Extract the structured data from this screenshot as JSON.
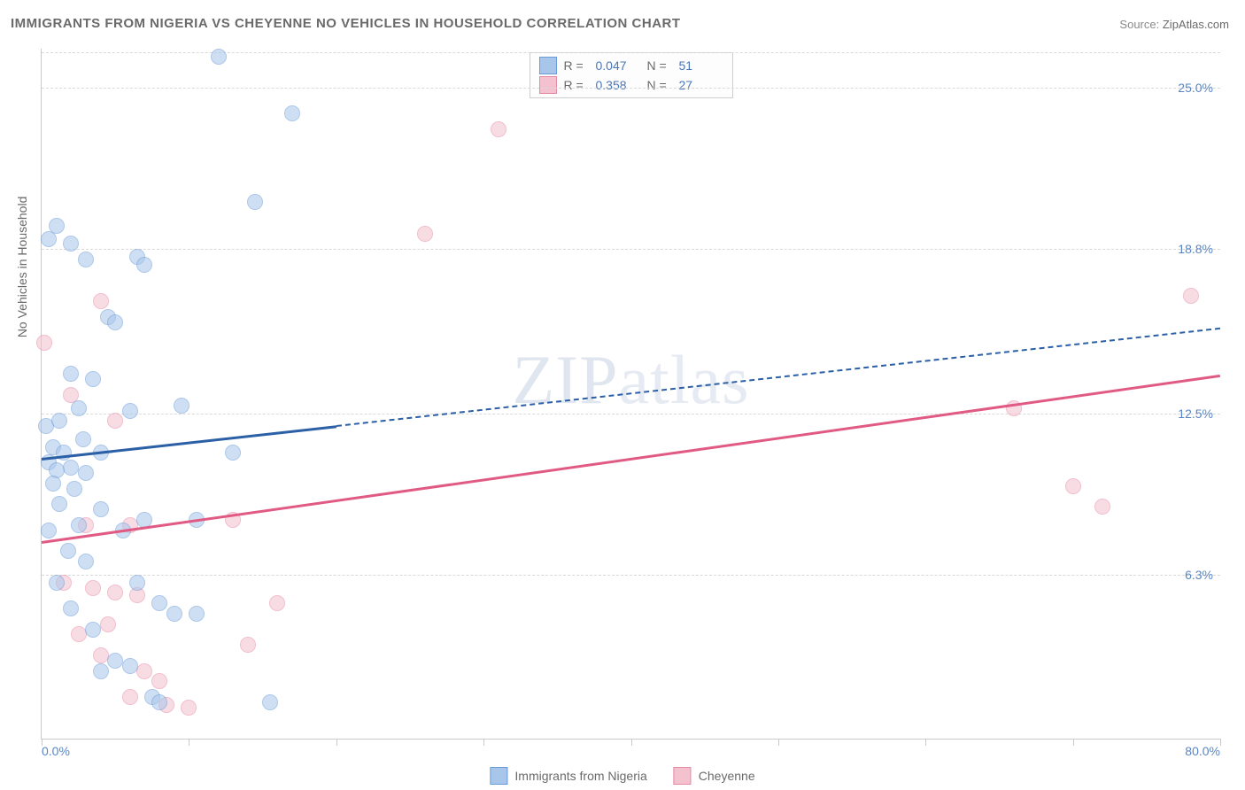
{
  "title": "IMMIGRANTS FROM NIGERIA VS CHEYENNE NO VEHICLES IN HOUSEHOLD CORRELATION CHART",
  "source_label": "Source:",
  "source_value": "ZipAtlas.com",
  "watermark_a": "ZIP",
  "watermark_b": "atlas",
  "yaxis_label": "No Vehicles in Household",
  "plot": {
    "x_min": 0.0,
    "x_max": 80.0,
    "y_min": 0.0,
    "y_max": 26.5,
    "y_gridlines": [
      6.3,
      12.5,
      18.8,
      25.0
    ],
    "y_tick_labels": [
      "6.3%",
      "12.5%",
      "18.8%",
      "25.0%"
    ],
    "x_gridlines": [
      0,
      10,
      20,
      30,
      40,
      50,
      60,
      70,
      80
    ],
    "x_tick_min_label": "0.0%",
    "x_tick_max_label": "80.0%",
    "background": "#ffffff",
    "grid_color": "#d9d9d9",
    "axis_color": "#c9c9c9",
    "marker_radius": 9,
    "marker_opacity": 0.55
  },
  "series": {
    "a": {
      "label": "Immigrants from Nigeria",
      "R": "0.047",
      "N": "51",
      "fill": "#a8c6ea",
      "stroke": "#6a9bd8",
      "line_color": "#2b5fa6",
      "points": [
        [
          12.0,
          26.2
        ],
        [
          17.0,
          24.0
        ],
        [
          14.5,
          20.6
        ],
        [
          1.0,
          19.7
        ],
        [
          0.5,
          19.2
        ],
        [
          2.0,
          19.0
        ],
        [
          6.5,
          18.5
        ],
        [
          3.0,
          18.4
        ],
        [
          7.0,
          18.2
        ],
        [
          4.5,
          16.2
        ],
        [
          5.0,
          16.0
        ],
        [
          2.0,
          14.0
        ],
        [
          3.5,
          13.8
        ],
        [
          9.5,
          12.8
        ],
        [
          2.5,
          12.7
        ],
        [
          6.0,
          12.6
        ],
        [
          0.8,
          11.2
        ],
        [
          1.5,
          11.0
        ],
        [
          4.0,
          11.0
        ],
        [
          13.0,
          11.0
        ],
        [
          0.5,
          10.6
        ],
        [
          2.0,
          10.4
        ],
        [
          1.0,
          10.3
        ],
        [
          3.0,
          10.2
        ],
        [
          0.8,
          9.8
        ],
        [
          2.2,
          9.6
        ],
        [
          1.2,
          9.0
        ],
        [
          4.0,
          8.8
        ],
        [
          7.0,
          8.4
        ],
        [
          10.5,
          8.4
        ],
        [
          2.5,
          8.2
        ],
        [
          0.5,
          8.0
        ],
        [
          5.5,
          8.0
        ],
        [
          1.8,
          7.2
        ],
        [
          3.0,
          6.8
        ],
        [
          8.0,
          5.2
        ],
        [
          9.0,
          4.8
        ],
        [
          10.5,
          4.8
        ],
        [
          5.0,
          3.0
        ],
        [
          6.0,
          2.8
        ],
        [
          4.0,
          2.6
        ],
        [
          7.5,
          1.6
        ],
        [
          8.0,
          1.4
        ],
        [
          15.5,
          1.4
        ],
        [
          2.0,
          5.0
        ],
        [
          3.5,
          4.2
        ],
        [
          1.0,
          6.0
        ],
        [
          6.5,
          6.0
        ],
        [
          0.3,
          12.0
        ],
        [
          1.2,
          12.2
        ],
        [
          2.8,
          11.5
        ]
      ],
      "trend": {
        "x1": 0,
        "y1": 10.8,
        "x2": 80,
        "y2": 15.8,
        "solid_until_x": 20
      }
    },
    "b": {
      "label": "Cheyenne",
      "R": "0.358",
      "N": "27",
      "fill": "#f4c1cf",
      "stroke": "#e78aa5",
      "line_color": "#e05a84",
      "points": [
        [
          31.0,
          23.4
        ],
        [
          26.0,
          19.4
        ],
        [
          78.0,
          17.0
        ],
        [
          0.2,
          15.2
        ],
        [
          4.0,
          16.8
        ],
        [
          66.0,
          12.7
        ],
        [
          70.0,
          9.7
        ],
        [
          72.0,
          8.9
        ],
        [
          2.0,
          13.2
        ],
        [
          5.0,
          12.2
        ],
        [
          3.0,
          8.2
        ],
        [
          6.0,
          8.2
        ],
        [
          13.0,
          8.4
        ],
        [
          1.5,
          6.0
        ],
        [
          3.5,
          5.8
        ],
        [
          5.0,
          5.6
        ],
        [
          6.5,
          5.5
        ],
        [
          16.0,
          5.2
        ],
        [
          14.0,
          3.6
        ],
        [
          4.0,
          3.2
        ],
        [
          7.0,
          2.6
        ],
        [
          8.0,
          2.2
        ],
        [
          10.0,
          1.2
        ],
        [
          8.5,
          1.3
        ],
        [
          4.5,
          4.4
        ],
        [
          2.5,
          4.0
        ],
        [
          6.0,
          1.6
        ]
      ],
      "trend": {
        "x1": 0,
        "y1": 7.6,
        "x2": 80,
        "y2": 14.0,
        "solid_until_x": 80
      }
    }
  },
  "legend_top": {
    "R_label": "R =",
    "N_label": "N ="
  }
}
